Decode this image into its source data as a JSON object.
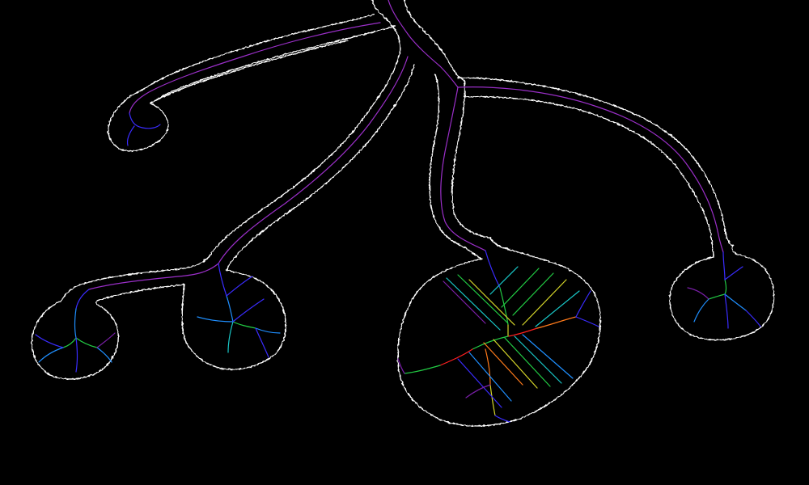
{
  "canvas": {
    "background": "#000000",
    "outline_color": "#ffffff"
  },
  "figure": {
    "components": [
      {
        "name": "trunk-branches",
        "kind": "branching tube"
      },
      {
        "name": "blob-top-left",
        "kind": "hooked end lobe"
      },
      {
        "name": "blob-left",
        "kind": "rounded lobe"
      },
      {
        "name": "blob-mid-left",
        "kind": "rounded lobe"
      },
      {
        "name": "blob-center",
        "kind": "large rounded lobe"
      },
      {
        "name": "blob-right",
        "kind": "rounded lobe"
      }
    ],
    "skeleton_color_scale": [
      "#7a1fa8",
      "#3a2cff",
      "#1f8fff",
      "#19c9c9",
      "#22cc44",
      "#d6d62a",
      "#ff7a1a",
      "#ff2020"
    ]
  }
}
